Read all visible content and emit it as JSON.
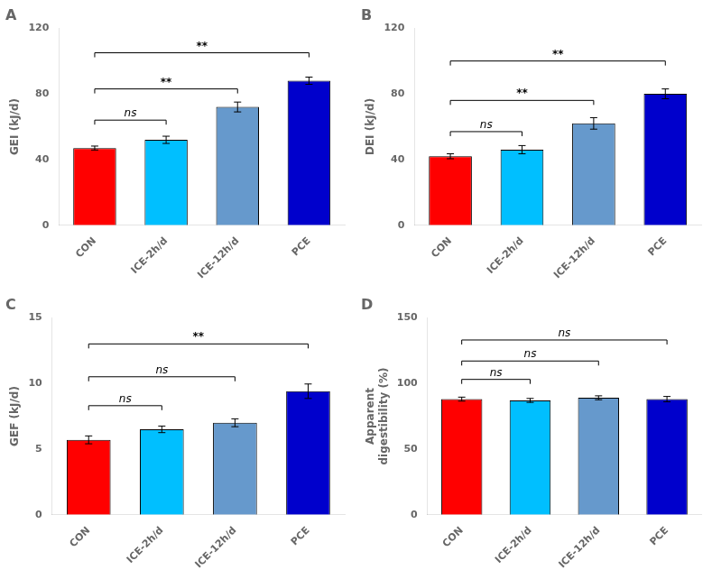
{
  "chart_data": [
    {
      "type": "bar",
      "title": "A",
      "categories": [
        "CON",
        "ICE-2h/d",
        "ICE-12h/d",
        "PCE"
      ],
      "values": [
        47.0,
        52.0,
        72.0,
        88.0
      ],
      "errors": [
        1.2,
        2.2,
        3.0,
        2.2
      ],
      "colors": [
        "#ff0000",
        "#00bfff",
        "#6699cc",
        "#0000cc"
      ],
      "ylabel": "GEI (kJ/d)",
      "ylim": [
        0,
        120
      ],
      "yticks": [
        0,
        40,
        80,
        120
      ],
      "grid": false,
      "annotations": [
        {
          "x1": "CON",
          "x2": "ICE-2h/d",
          "y": 64,
          "text": "ns"
        },
        {
          "x1": "CON",
          "x2": "ICE-12h/d",
          "y": 83,
          "text": "**"
        },
        {
          "x1": "CON",
          "x2": "PCE",
          "y": 105,
          "text": "**"
        }
      ]
    },
    {
      "type": "bar",
      "title": "B",
      "categories": [
        "CON",
        "ICE-2h/d",
        "ICE-12h/d",
        "PCE"
      ],
      "values": [
        42.0,
        46.0,
        62.0,
        80.0
      ],
      "errors": [
        1.5,
        2.5,
        3.5,
        3.0
      ],
      "colors": [
        "#ff0000",
        "#00bfff",
        "#6699cc",
        "#0000cc"
      ],
      "ylabel": "DEI (kJ/d)",
      "ylim": [
        0,
        120
      ],
      "yticks": [
        0,
        40,
        80,
        120
      ],
      "grid": false,
      "annotations": [
        {
          "x1": "CON",
          "x2": "ICE-2h/d",
          "y": 57,
          "text": "ns"
        },
        {
          "x1": "CON",
          "x2": "ICE-12h/d",
          "y": 76,
          "text": "**"
        },
        {
          "x1": "CON",
          "x2": "PCE",
          "y": 100,
          "text": "**"
        }
      ]
    },
    {
      "type": "bar",
      "title": "C",
      "categories": [
        "CON",
        "ICE-2h/d",
        "ICE-12h/d",
        "PCE"
      ],
      "values": [
        5.7,
        6.5,
        7.0,
        9.4
      ],
      "errors": [
        0.3,
        0.25,
        0.3,
        0.55
      ],
      "colors": [
        "#ff0000",
        "#00bfff",
        "#6699cc",
        "#0000cc"
      ],
      "ylabel": "GEF (kJ/d)",
      "ylim": [
        0,
        15
      ],
      "yticks": [
        0,
        5,
        10,
        15
      ],
      "grid": false,
      "annotations": [
        {
          "x1": "CON",
          "x2": "ICE-2h/d",
          "y": 8.3,
          "text": "ns"
        },
        {
          "x1": "CON",
          "x2": "ICE-12h/d",
          "y": 10.5,
          "text": "ns"
        },
        {
          "x1": "CON",
          "x2": "PCE",
          "y": 13.0,
          "text": "**"
        }
      ]
    },
    {
      "type": "bar",
      "title": "D",
      "categories": [
        "CON",
        "ICE-2h/d",
        "ICE-12h/d",
        "PCE"
      ],
      "values": [
        88.0,
        87.0,
        89.0,
        88.0
      ],
      "errors": [
        1.5,
        1.5,
        1.5,
        2.0
      ],
      "colors": [
        "#ff0000",
        "#00bfff",
        "#6699cc",
        "#0000cc"
      ],
      "ylabel": "Apparent\ndigestibility (%)",
      "ylim": [
        0,
        150
      ],
      "yticks": [
        0,
        50,
        100,
        150
      ],
      "grid": false,
      "annotations": [
        {
          "x1": "CON",
          "x2": "ICE-2h/d",
          "y": 103,
          "text": "ns"
        },
        {
          "x1": "CON",
          "x2": "ICE-12h/d",
          "y": 117,
          "text": "ns"
        },
        {
          "x1": "CON",
          "x2": "PCE",
          "y": 133,
          "text": "ns"
        }
      ]
    }
  ]
}
